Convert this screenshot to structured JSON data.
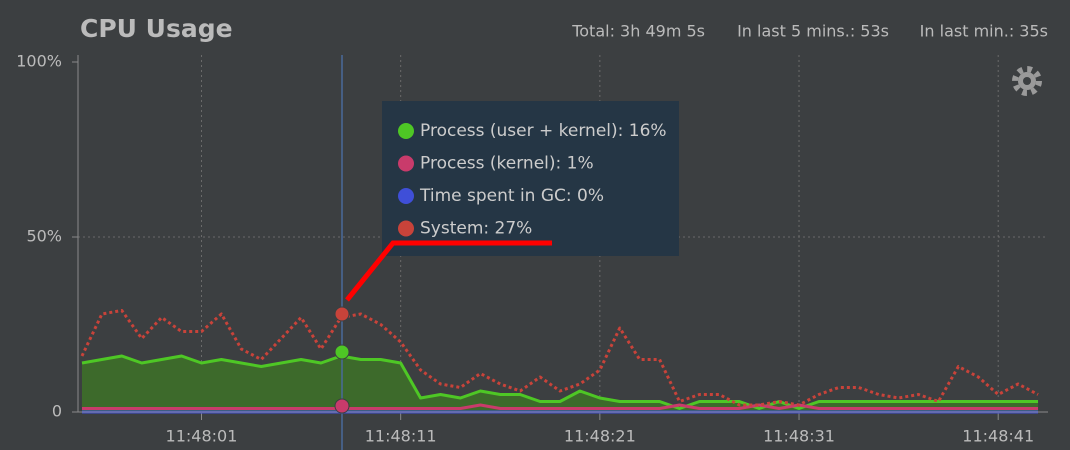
{
  "chart_data": {
    "type": "line",
    "title": "CPU Usage",
    "stats": [
      "Total: 3h 49m 5s",
      "In last 5 mins.: 53s",
      "In last min.: 35s"
    ],
    "x": [
      -5,
      -4,
      -3,
      -2,
      -1,
      0,
      1,
      2,
      3,
      4,
      5,
      6,
      7,
      8,
      9,
      10,
      11,
      12,
      13,
      14,
      15,
      16,
      17,
      18,
      19,
      20,
      21,
      22,
      23,
      24,
      25,
      26,
      27,
      28,
      29,
      30,
      31,
      32,
      33,
      34,
      35,
      36,
      37,
      38,
      39,
      40,
      41,
      42,
      43
    ],
    "xlim": [
      -5.2,
      43.5
    ],
    "xticks": [
      {
        "value": 1,
        "label": "11:48:01"
      },
      {
        "value": 11,
        "label": "11:48:11"
      },
      {
        "value": 21,
        "label": "11:48:21"
      },
      {
        "value": 31,
        "label": "11:48:31"
      },
      {
        "value": 41,
        "label": "11:48:41"
      }
    ],
    "ylim": [
      0,
      100
    ],
    "yticks": [
      0,
      {
        "value": 50,
        "label": "50%"
      },
      {
        "value": 100,
        "label": "100%"
      }
    ],
    "grid": true,
    "series": [
      {
        "name": "Process (user + kernel)",
        "color": "#4ec725",
        "fill": "#3d6a2b",
        "style": "solid",
        "values": [
          14,
          15,
          16,
          14,
          15,
          16,
          14,
          15,
          14,
          13,
          14,
          15,
          14,
          16,
          15,
          15,
          14,
          4,
          5,
          4,
          6,
          5,
          5,
          3,
          3,
          6,
          4,
          3,
          3,
          3,
          1,
          3,
          3,
          3,
          1,
          3,
          1,
          3,
          3,
          3,
          3,
          3,
          3,
          3,
          3,
          3,
          3,
          3,
          3
        ]
      },
      {
        "name": "Process (kernel)",
        "color": "#c93b6b",
        "style": "solid",
        "values": [
          1,
          1,
          1,
          1,
          1,
          1,
          1,
          1,
          1,
          1,
          1,
          1,
          1,
          1,
          1,
          1,
          1,
          1,
          1,
          1,
          2,
          1,
          1,
          1,
          1,
          1,
          1,
          1,
          1,
          1,
          2,
          1,
          1,
          1,
          2,
          1,
          2,
          1,
          1,
          1,
          1,
          1,
          1,
          1,
          1,
          1,
          1,
          1,
          1
        ]
      },
      {
        "name": "Time spent in GC",
        "color": "#3f4fd8",
        "style": "solid",
        "values": [
          0,
          0,
          0,
          0,
          0,
          0,
          0,
          0,
          0,
          0,
          0,
          0,
          0,
          0,
          0,
          0,
          0,
          0,
          0,
          0,
          0,
          0,
          0,
          0,
          0,
          0,
          0,
          0,
          0,
          0,
          0,
          0,
          0,
          0,
          0,
          0,
          0,
          0,
          0,
          0,
          0,
          0,
          0,
          0,
          0,
          0,
          0,
          0,
          0
        ]
      },
      {
        "name": "System",
        "color": "#c8433a",
        "style": "dotted",
        "values": [
          16,
          28,
          29,
          21,
          27,
          23,
          23,
          28,
          18,
          15,
          21,
          27,
          18,
          27,
          28,
          25,
          20,
          12,
          8,
          7,
          11,
          8,
          6,
          10,
          6,
          8,
          12,
          24,
          15,
          15,
          3,
          5,
          5,
          2,
          2,
          3,
          2,
          5,
          7,
          7,
          5,
          4,
          5,
          3,
          13,
          10,
          5,
          8,
          5
        ]
      }
    ],
    "tooltip": [
      {
        "label": "Process (user + kernel): 16%",
        "color": "#4ec725"
      },
      {
        "label": "Process (kernel): 1%",
        "color": "#c93b6b"
      },
      {
        "label": "Time spent in GC: 0%",
        "color": "#3f4fd8"
      },
      {
        "label": "System: 27%",
        "color": "#c8433a"
      }
    ]
  }
}
